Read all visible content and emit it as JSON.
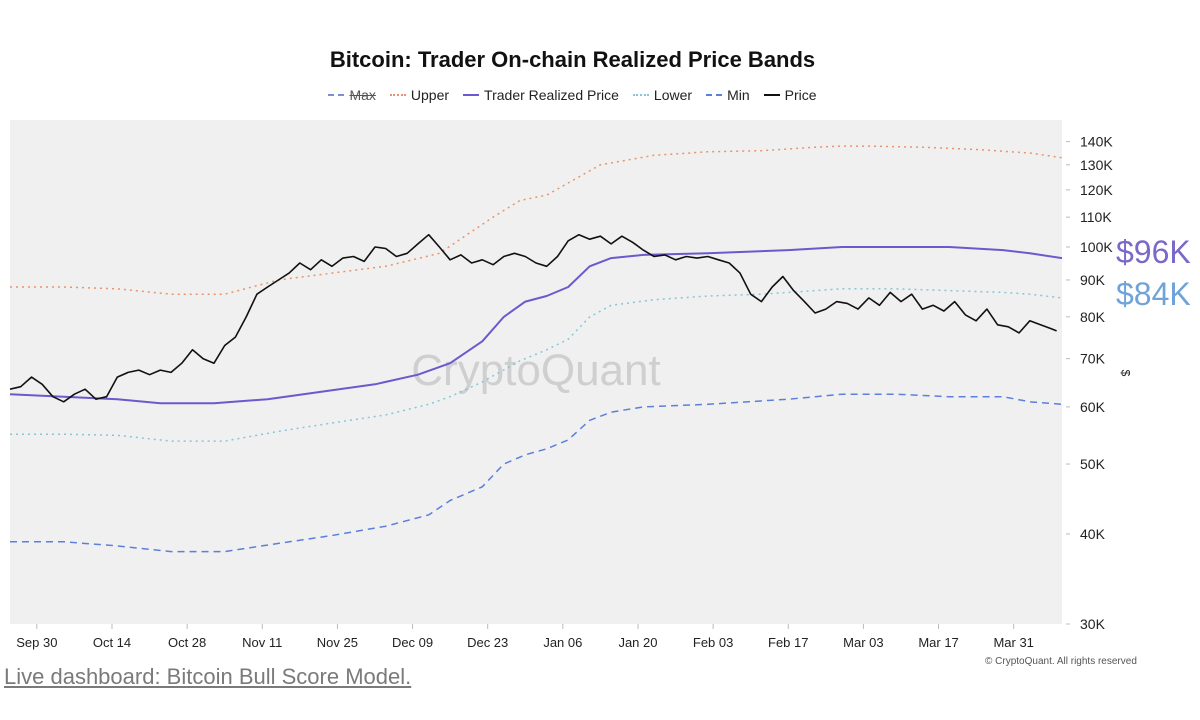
{
  "page": {
    "footer": "© CryptoQuant. All rights reserved",
    "link_text": "Live dashboard: Bitcoin Bull Score Model.",
    "watermark": "CryptoQuant",
    "side_labels": [
      {
        "text": "$96K",
        "color": "#7b68c9"
      },
      {
        "text": "$84K",
        "color": "#6fa3d9"
      }
    ]
  },
  "chart_data": {
    "type": "line",
    "title": "Bitcoin: Trader On-chain Realized Price Bands",
    "y_unit": "$",
    "y_scale": "log",
    "ylim": [
      30000,
      150000
    ],
    "y_ticks": [
      30000,
      40000,
      50000,
      60000,
      70000,
      80000,
      90000,
      100000,
      110000,
      120000,
      130000,
      140000
    ],
    "y_tick_labels": [
      "30K",
      "40K",
      "50K",
      "60K",
      "70K",
      "80K",
      "90K",
      "100K",
      "110K",
      "120K",
      "130K",
      "140K"
    ],
    "x_tick_labels": [
      "Sep 30",
      "Oct 14",
      "Oct 28",
      "Nov 11",
      "Nov 25",
      "Dec 09",
      "Dec 23",
      "Jan 06",
      "Jan 20",
      "Feb 03",
      "Feb 17",
      "Mar 03",
      "Mar 17",
      "Mar 31"
    ],
    "x_tick_days": [
      5,
      19,
      33,
      47,
      61,
      75,
      89,
      103,
      117,
      131,
      145,
      159,
      173,
      187
    ],
    "x_range_days": [
      0,
      196
    ],
    "day_zero": "Sep 25",
    "background": "#f0f0f0",
    "grid": false,
    "legend_position": "top-center",
    "legend": [
      {
        "name": "Max",
        "color": "#7a8fd6",
        "style": "dashed",
        "struck": true
      },
      {
        "name": "Upper",
        "color": "#e8946a",
        "style": "dotted"
      },
      {
        "name": "Trader Realized Price",
        "color": "#6a5acd",
        "style": "solid"
      },
      {
        "name": "Lower",
        "color": "#86c6d6",
        "style": "dotted"
      },
      {
        "name": "Min",
        "color": "#5b7fdb",
        "style": "dashed"
      },
      {
        "name": "Price",
        "color": "#111111",
        "style": "solid"
      }
    ],
    "series": [
      {
        "name": "Upper",
        "color": "#e8946a",
        "style": "dotted",
        "x": [
          0,
          10,
          20,
          30,
          40,
          50,
          60,
          70,
          80,
          90,
          95,
          100,
          110,
          120,
          130,
          140,
          150,
          155,
          160,
          170,
          180,
          190,
          196
        ],
        "values": [
          88000,
          88000,
          87500,
          86000,
          86000,
          90000,
          92000,
          94000,
          98000,
          110000,
          116000,
          118000,
          130000,
          134000,
          135500,
          136000,
          137500,
          138000,
          138000,
          137500,
          136500,
          135000,
          133000
        ]
      },
      {
        "name": "Trader Realized Price",
        "color": "#6a5acd",
        "style": "solid",
        "x": [
          0,
          10,
          20,
          28,
          38,
          48,
          58,
          68,
          76,
          82,
          88,
          92,
          96,
          100,
          104,
          108,
          112,
          118,
          130,
          145,
          155,
          165,
          175,
          185,
          190,
          196
        ],
        "values": [
          62500,
          62000,
          61500,
          60700,
          60700,
          61500,
          63000,
          64500,
          66500,
          69000,
          74000,
          80000,
          84000,
          85500,
          88000,
          94000,
          96500,
          97500,
          98000,
          99000,
          100000,
          100000,
          100000,
          99000,
          98000,
          96500
        ]
      },
      {
        "name": "Lower",
        "color": "#86c6d6",
        "style": "dotted",
        "x": [
          0,
          10,
          20,
          30,
          40,
          50,
          60,
          70,
          78,
          82,
          88,
          95,
          100,
          104,
          108,
          112,
          120,
          130,
          140,
          150,
          155,
          165,
          175,
          185,
          190,
          196
        ],
        "values": [
          55000,
          55000,
          54800,
          53800,
          53800,
          55500,
          57000,
          58500,
          60500,
          62000,
          65000,
          69500,
          72000,
          74500,
          80000,
          83000,
          84500,
          85500,
          86000,
          87000,
          87500,
          87500,
          87000,
          86500,
          86000,
          85000
        ]
      },
      {
        "name": "Min",
        "color": "#5b7fdb",
        "style": "dashed",
        "x": [
          0,
          10,
          20,
          30,
          40,
          50,
          60,
          70,
          78,
          82,
          88,
          92,
          96,
          100,
          104,
          108,
          112,
          118,
          130,
          145,
          155,
          165,
          175,
          185,
          190,
          196
        ],
        "values": [
          39000,
          39000,
          38500,
          37800,
          37800,
          38800,
          39800,
          41000,
          42500,
          44500,
          46500,
          50000,
          51500,
          52500,
          54000,
          57500,
          59000,
          60000,
          60500,
          61500,
          62500,
          62500,
          62000,
          62000,
          61000,
          60500
        ]
      },
      {
        "name": "Price",
        "color": "#111111",
        "style": "solid",
        "x": [
          0,
          2,
          4,
          6,
          8,
          10,
          12,
          14,
          16,
          18,
          20,
          22,
          24,
          26,
          28,
          30,
          32,
          34,
          36,
          38,
          40,
          42,
          44,
          46,
          48,
          50,
          52,
          54,
          56,
          58,
          60,
          62,
          64,
          66,
          68,
          70,
          72,
          74,
          76,
          78,
          80,
          82,
          84,
          86,
          88,
          90,
          92,
          94,
          96,
          98,
          100,
          102,
          104,
          106,
          108,
          110,
          112,
          114,
          116,
          118,
          120,
          122,
          124,
          126,
          128,
          130,
          132,
          134,
          136,
          138,
          140,
          142,
          144,
          146,
          148,
          150,
          152,
          154,
          156,
          158,
          160,
          162,
          164,
          166,
          168,
          170,
          172,
          174,
          176,
          178,
          180,
          182,
          184,
          186,
          188,
          190,
          192,
          194,
          195
        ],
        "values": [
          63500,
          64000,
          66000,
          64500,
          62000,
          61000,
          62500,
          63500,
          61500,
          62000,
          66000,
          67000,
          67500,
          66500,
          67500,
          67000,
          69000,
          72000,
          70000,
          69000,
          73000,
          75000,
          80000,
          86000,
          88000,
          90000,
          92000,
          95000,
          93000,
          96000,
          94000,
          96500,
          97000,
          95500,
          100000,
          99500,
          97000,
          98000,
          101000,
          104000,
          100000,
          96000,
          97500,
          95000,
          96000,
          94500,
          97000,
          98000,
          97000,
          95000,
          94000,
          97000,
          102000,
          104000,
          102500,
          103500,
          101000,
          103500,
          101500,
          99000,
          97000,
          97500,
          96000,
          97000,
          96500,
          97000,
          96000,
          95000,
          92000,
          86000,
          84000,
          88000,
          91000,
          87000,
          84000,
          81000,
          82000,
          84000,
          83500,
          82000,
          85000,
          83000,
          86500,
          84000,
          86000,
          82000,
          83000,
          81500,
          84000,
          80500,
          79000,
          82000,
          78000,
          77500,
          76000,
          79000,
          78000,
          77000,
          76500
        ]
      }
    ]
  }
}
